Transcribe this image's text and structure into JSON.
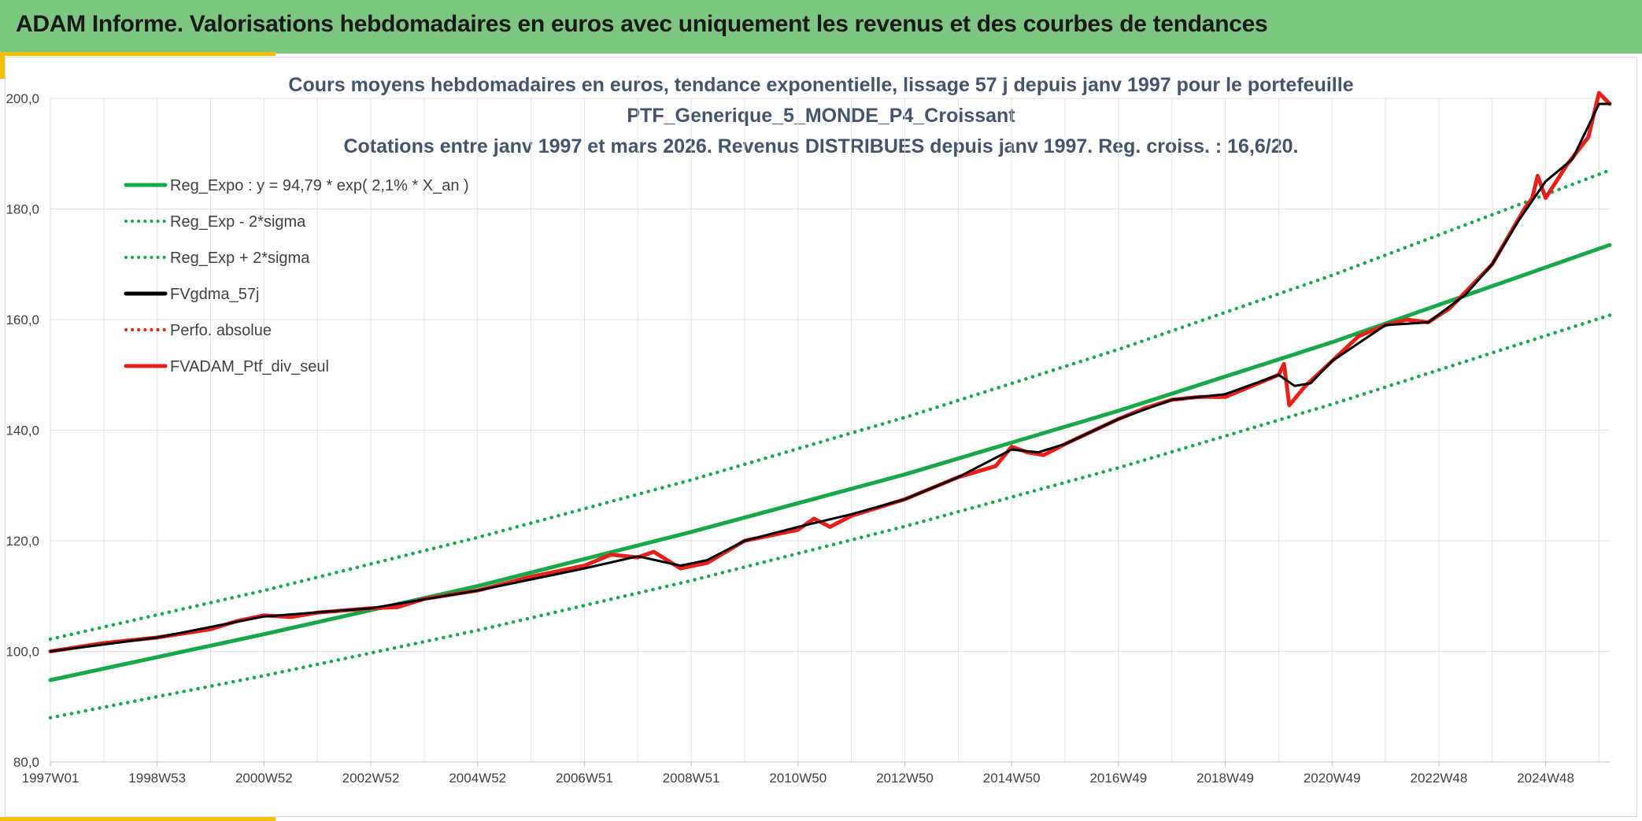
{
  "header": {
    "title": "ADAM Informe. Valorisations hebdomadaires en euros avec uniquement les revenus et des courbes de tendances"
  },
  "colors": {
    "banner": "#7dc67f",
    "accent": "#f2c200",
    "reg_line": "#17a84a",
    "series_red": "#e8201a",
    "series_black": "#000000",
    "title_text": "#44546a"
  },
  "chart_data": {
    "type": "line",
    "title_lines": [
      "Cours moyens hebdomadaires en euros, tendance exponentielle, lissage 57 j depuis janv 1997 pour le portefeuille",
      "PTF_Generique_5_MONDE_P4_Croissant",
      "Cotations entre janv 1997 et mars 2026. Revenus DISTRIBUES depuis janv 1997. Reg. croiss. : 16,6/20."
    ],
    "xlabel": "",
    "ylabel": "",
    "ylim": [
      80,
      200
    ],
    "xlim": [
      1997.0,
      2026.2
    ],
    "y_ticks": [
      "80,0",
      "100,0",
      "120,0",
      "140,0",
      "160,0",
      "180,0",
      "200,0"
    ],
    "y_tick_values": [
      80,
      100,
      120,
      140,
      160,
      180,
      200
    ],
    "x_ticks": [
      "1997W01",
      "1998W53",
      "2000W52",
      "2002W52",
      "2004W52",
      "2006W51",
      "2008W51",
      "2010W50",
      "2012W50",
      "2014W50",
      "2016W49",
      "2018W49",
      "2020W49",
      "2022W48",
      "2024W48"
    ],
    "x_tick_values": [
      1997.0,
      1999.0,
      2001.0,
      2003.0,
      2005.0,
      2007.0,
      2009.0,
      2011.0,
      2013.0,
      2015.0,
      2017.0,
      2019.0,
      2021.0,
      2023.0,
      2025.0
    ],
    "grid": true,
    "legend_position": "top-left",
    "legend": [
      {
        "name": "Reg_Expo : y = 94,79 * exp( 2,1% *  X_an )",
        "style": "solid",
        "color": "#17a84a"
      },
      {
        "name": "Reg_Exp - 2*sigma",
        "style": "dotted",
        "color": "#17a84a"
      },
      {
        "name": "Reg_Exp + 2*sigma",
        "style": "dotted",
        "color": "#17a84a"
      },
      {
        "name": "FVgdma_57j",
        "style": "solid",
        "color": "#000000"
      },
      {
        "name": "Perfo. absolue",
        "style": "dotted",
        "color": "#e8201a"
      },
      {
        "name": "FVADAM_Ptf_div_seul",
        "style": "solid",
        "color": "#e8201a"
      }
    ],
    "series": [
      {
        "name": "Reg_Expo : y = 94,79 * exp( 2,1% *  X_an )",
        "x": [
          1997.0,
          2001.0,
          2005.0,
          2009.0,
          2013.0,
          2017.0,
          2021.0,
          2026.2
        ],
        "values": [
          94.8,
          103.1,
          111.8,
          121.6,
          132.0,
          143.5,
          155.9,
          173.5
        ]
      },
      {
        "name": "Reg_Exp - 2*sigma",
        "x": [
          1997.0,
          2001.0,
          2005.0,
          2009.0,
          2013.0,
          2017.0,
          2021.0,
          2026.2
        ],
        "values": [
          88.0,
          95.6,
          103.8,
          112.8,
          122.6,
          133.2,
          144.7,
          160.8
        ]
      },
      {
        "name": "Reg_Exp + 2*sigma",
        "x": [
          1997.0,
          2001.0,
          2005.0,
          2009.0,
          2013.0,
          2017.0,
          2021.0,
          2026.2
        ],
        "values": [
          102.2,
          111.0,
          120.6,
          131.0,
          142.3,
          154.6,
          168.0,
          187.0
        ]
      },
      {
        "name": "FVADAM_Ptf_div_seul",
        "x": [
          1997.0,
          1998.0,
          1999.0,
          2000.0,
          2000.5,
          2001.0,
          2001.5,
          2002.0,
          2003.0,
          2003.5,
          2004.0,
          2005.0,
          2006.0,
          2007.0,
          2007.5,
          2008.0,
          2008.3,
          2008.8,
          2009.3,
          2010.0,
          2010.5,
          2011.0,
          2011.3,
          2011.6,
          2012.0,
          2013.0,
          2014.0,
          2014.7,
          2015.0,
          2015.3,
          2015.6,
          2016.0,
          2017.0,
          2017.5,
          2018.0,
          2018.5,
          2019.0,
          2019.5,
          2020.0,
          2020.1,
          2020.2,
          2020.5,
          2021.0,
          2021.5,
          2022.0,
          2022.4,
          2022.8,
          2023.2,
          2023.6,
          2024.0,
          2024.3,
          2024.6,
          2024.75,
          2024.85,
          2025.0,
          2025.4,
          2025.8,
          2026.0,
          2026.2
        ],
        "values": [
          100.0,
          101.5,
          102.5,
          104.0,
          105.5,
          106.5,
          106.2,
          107.0,
          107.8,
          108.0,
          109.5,
          111.0,
          113.5,
          115.5,
          117.5,
          117.0,
          118.0,
          115.0,
          116.0,
          120.0,
          121.0,
          122.0,
          124.0,
          122.5,
          124.5,
          127.5,
          131.5,
          133.5,
          137.0,
          136.0,
          135.5,
          137.5,
          142.0,
          144.0,
          145.5,
          146.0,
          146.0,
          148.0,
          150.0,
          152.0,
          144.5,
          148.0,
          152.5,
          157.0,
          159.0,
          160.0,
          159.5,
          162.0,
          166.0,
          170.0,
          175.0,
          180.0,
          182.0,
          186.0,
          182.0,
          188.0,
          193.0,
          201.0,
          199.0
        ]
      },
      {
        "name": "FVgdma_57j",
        "x": [
          1997.0,
          1999.0,
          2001.0,
          2003.0,
          2005.0,
          2007.0,
          2008.0,
          2008.8,
          2009.3,
          2010.0,
          2011.0,
          2012.0,
          2013.0,
          2014.0,
          2015.0,
          2015.5,
          2016.0,
          2017.0,
          2018.0,
          2019.0,
          2020.0,
          2020.3,
          2020.6,
          2021.0,
          2022.0,
          2022.8,
          2023.5,
          2024.0,
          2024.5,
          2025.0,
          2025.5,
          2026.0,
          2026.2
        ],
        "values": [
          100.0,
          102.5,
          106.3,
          107.8,
          111.0,
          115.0,
          117.2,
          115.5,
          116.5,
          120.0,
          122.5,
          124.8,
          127.5,
          131.5,
          136.5,
          136.0,
          137.5,
          142.0,
          145.5,
          146.5,
          150.0,
          148.0,
          148.5,
          152.5,
          159.0,
          159.5,
          164.5,
          170.0,
          178.0,
          185.0,
          189.0,
          199.0,
          199.0
        ]
      }
    ]
  }
}
